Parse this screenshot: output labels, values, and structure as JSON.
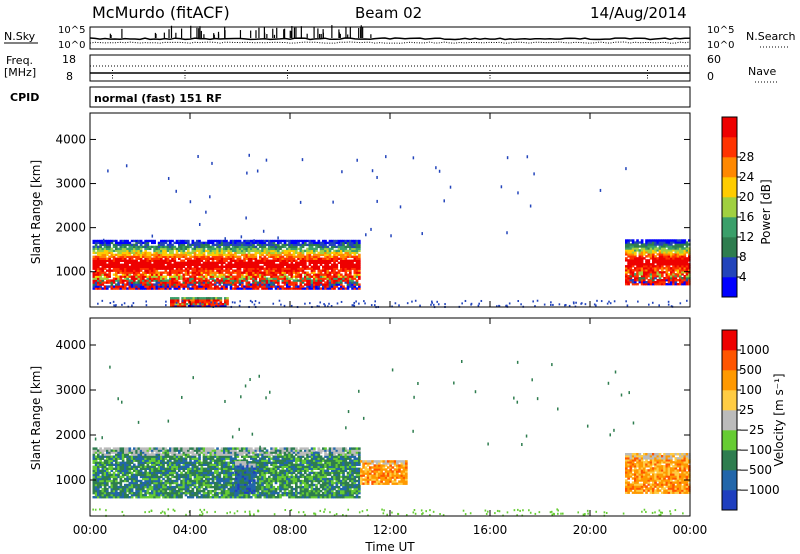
{
  "header": {
    "title": "McMurdo (fitACF)",
    "beam": "Beam 02",
    "date": "14/Aug/2014"
  },
  "params_panel": {
    "nsky_label": "N.Sky",
    "nsearch_label": "N.Search",
    "freq_label_line1": "Freq.",
    "freq_label_line2": "[MHz]",
    "nave_label": "Nave",
    "cpid_label": "CPID",
    "cpid_text": "normal (fast) 151 RF",
    "noise_ticks": [
      "10^5",
      "10^0"
    ],
    "freq_ticks": [
      "18",
      "8"
    ],
    "nave_ticks": [
      "60",
      "0"
    ]
  },
  "chart_data": [
    {
      "type": "heatmap",
      "name": "power",
      "ylabel": "Slant Range [km]",
      "xlabel": "",
      "ylim": [
        200,
        4600
      ],
      "yticks": [
        "1000",
        "2000",
        "3000",
        "4000"
      ],
      "xticks": [
        "00:00",
        "04:00",
        "08:00",
        "12:00",
        "16:00",
        "20:00",
        "00:00"
      ],
      "colorbar": {
        "label": "Power [dB]",
        "ticks": [
          "4",
          "8",
          "12",
          "16",
          "20",
          "24",
          "28"
        ],
        "colors": [
          "#0000ff",
          "#2244bb",
          "#2e7d4f",
          "#3a9f6a",
          "#a0d040",
          "#ffcc00",
          "#ff8800",
          "#ff3300",
          "#ee0000"
        ]
      },
      "echo_regions": [
        {
          "t_start": 0.1,
          "t_end": 10.8,
          "r_min": 600,
          "r_max": 1700,
          "peak": "red",
          "note_peak_range_km": [
            600,
            1100
          ]
        },
        {
          "t_start": 21.4,
          "t_end": 24.0,
          "r_min": 700,
          "r_max": 1700,
          "peak": "red"
        },
        {
          "t_start": 3.2,
          "t_end": 5.5,
          "r_min": 200,
          "r_max": 420,
          "peak": "red"
        }
      ]
    },
    {
      "type": "heatmap",
      "name": "velocity",
      "ylabel": "Slant Range [km]",
      "xlabel": "Time UT",
      "ylim": [
        200,
        4600
      ],
      "yticks": [
        "1000",
        "2000",
        "3000",
        "4000"
      ],
      "xticks": [
        "00:00",
        "04:00",
        "08:00",
        "12:00",
        "16:00",
        "20:00",
        "00:00"
      ],
      "colorbar": {
        "label": "Velocity [m s⁻¹]",
        "ticks": [
          "1000",
          "500",
          "100",
          "25",
          "−25",
          "−100",
          "−500",
          "−1000"
        ],
        "colors": [
          "#1f3fbf",
          "#2266aa",
          "#2e7d4f",
          "#66cc33",
          "#bbbbbb",
          "#ffcc44",
          "#ff9900",
          "#ff5500",
          "#ee0000"
        ]
      },
      "echo_regions": [
        {
          "t_start": 0.1,
          "t_end": 10.8,
          "r_min": 600,
          "r_max": 1700,
          "dominant": "green"
        },
        {
          "t_start": 5.8,
          "t_end": 6.6,
          "r_min": 700,
          "r_max": 1400,
          "dominant": "blue"
        },
        {
          "t_start": 10.8,
          "t_end": 12.6,
          "r_min": 900,
          "r_max": 1400,
          "dominant": "orange"
        },
        {
          "t_start": 21.4,
          "t_end": 24.0,
          "r_min": 700,
          "r_max": 1600,
          "dominant": "orange"
        }
      ]
    }
  ]
}
